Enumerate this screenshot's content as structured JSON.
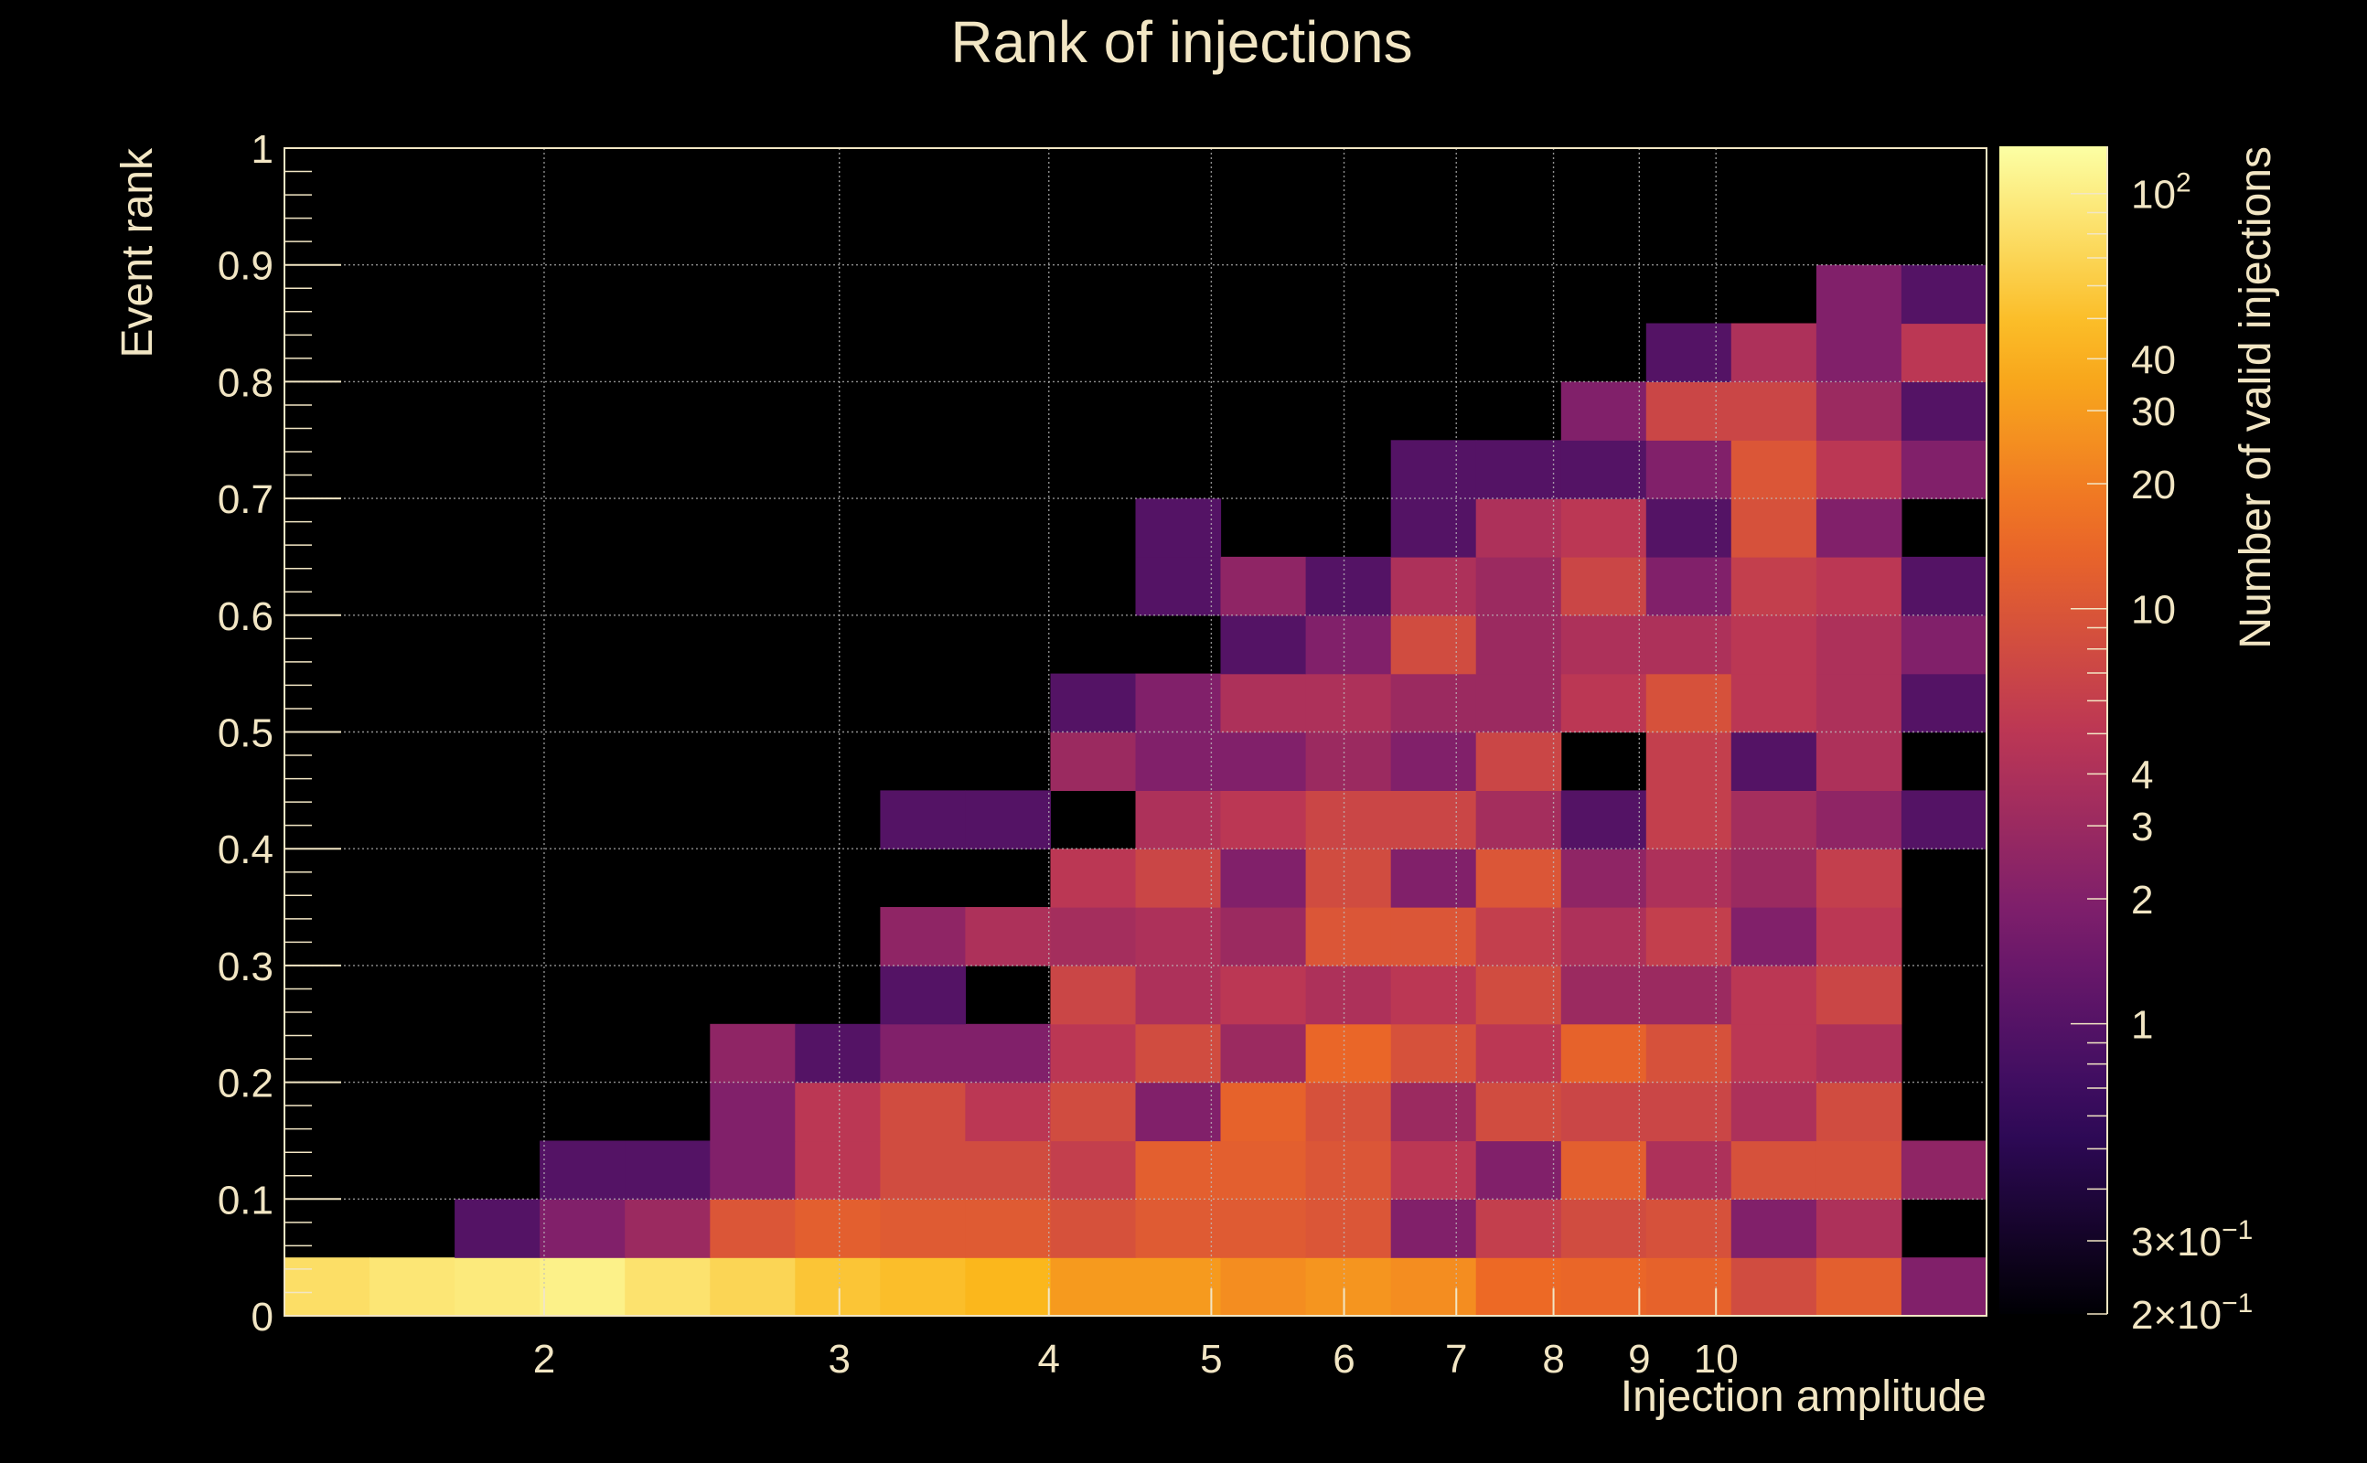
{
  "chart_data": {
    "type": "heatmap",
    "title": "Rank of injections",
    "xlabel": "Injection amplitude",
    "ylabel": "Event rank",
    "zlabel": "Number of valid injections",
    "x_scale": "log",
    "xlim": [
      1.4,
      14.5
    ],
    "ylim": [
      0,
      1
    ],
    "zlim": [
      0.2,
      130
    ],
    "z_scale": "log",
    "grid": true,
    "x_ticks": [
      "2",
      "3",
      "4",
      "5",
      "6",
      "7",
      "8",
      "9",
      "10"
    ],
    "y_ticks": [
      "0",
      "0.1",
      "0.2",
      "0.3",
      "0.4",
      "0.5",
      "0.6",
      "0.7",
      "0.8",
      "0.9",
      "1"
    ],
    "z_ticks": [
      {
        "value": 100,
        "label": "10",
        "exp": "2"
      },
      {
        "value": 40,
        "label": "40",
        "exp": ""
      },
      {
        "value": 30,
        "label": "30",
        "exp": ""
      },
      {
        "value": 20,
        "label": "20",
        "exp": ""
      },
      {
        "value": 10,
        "label": "10",
        "exp": ""
      },
      {
        "value": 4,
        "label": "4",
        "exp": ""
      },
      {
        "value": 3,
        "label": "3",
        "exp": ""
      },
      {
        "value": 2,
        "label": "2",
        "exp": ""
      },
      {
        "value": 1,
        "label": "1",
        "exp": ""
      },
      {
        "value": 0.3,
        "label": "3×10",
        "exp": "−1"
      },
      {
        "value": 0.2,
        "label": "2×10",
        "exp": "−1"
      }
    ],
    "y_bins": [
      0,
      0.05,
      0.1,
      0.15,
      0.2,
      0.25,
      0.3,
      0.35,
      0.4,
      0.45,
      0.5,
      0.55,
      0.6,
      0.65,
      0.7,
      0.75,
      0.8,
      0.85,
      0.9
    ],
    "rows": [
      [
        80,
        90,
        95,
        105,
        85,
        70,
        55,
        50,
        45,
        30,
        30,
        25,
        28,
        25,
        15,
        14,
        13,
        8,
        12,
        2
      ],
      [
        0,
        0,
        1,
        2,
        3,
        10,
        12,
        11,
        11,
        9,
        11,
        11,
        10,
        2,
        6,
        8,
        9,
        2,
        4,
        0
      ],
      [
        0,
        0,
        0,
        1,
        1,
        2,
        5,
        8,
        8,
        6,
        12,
        12,
        10,
        5,
        2,
        12,
        4,
        9,
        9,
        2.5
      ],
      [
        0,
        0,
        0,
        0,
        0,
        2,
        5,
        8,
        5,
        8,
        2,
        13,
        9,
        3,
        8,
        7,
        7,
        4,
        8,
        0
      ],
      [
        0,
        0,
        0,
        0,
        0,
        2.5,
        1,
        2,
        2,
        5,
        8,
        3,
        14,
        9,
        5,
        13,
        9,
        5,
        4,
        0
      ],
      [
        0,
        0,
        0,
        0,
        0,
        0,
        0,
        1,
        0,
        7,
        4,
        5,
        4,
        5,
        8,
        3,
        3,
        5,
        7,
        0
      ],
      [
        0,
        0,
        0,
        0,
        0,
        0,
        0,
        2.5,
        4,
        3.5,
        4,
        3,
        10,
        10,
        6,
        4,
        6,
        2,
        5,
        0
      ],
      [
        0,
        0,
        0,
        0,
        0,
        0,
        0,
        0,
        0,
        5,
        7,
        2,
        8,
        2,
        10,
        2.5,
        4,
        3,
        6,
        0
      ],
      [
        0,
        0,
        0,
        0,
        0,
        0,
        0,
        1,
        1,
        0,
        4,
        5,
        7,
        7,
        3.5,
        1,
        6,
        3.5,
        2.5,
        1
      ],
      [
        0,
        0,
        0,
        0,
        0,
        0,
        0,
        0,
        0,
        3,
        2,
        2,
        3,
        2,
        7,
        0,
        6,
        1,
        4,
        0
      ],
      [
        0,
        0,
        0,
        0,
        0,
        0,
        0,
        0,
        0,
        1,
        2,
        4,
        4,
        3,
        3,
        5,
        9,
        5,
        4,
        1
      ],
      [
        0,
        0,
        0,
        0,
        0,
        0,
        0,
        0,
        0,
        0,
        0,
        1,
        2,
        8,
        3,
        4,
        4,
        5,
        4,
        2
      ],
      [
        0,
        0,
        0,
        0,
        0,
        0,
        0,
        0,
        0,
        0,
        1,
        2.5,
        1,
        4,
        3,
        7,
        2,
        6,
        5,
        1
      ],
      [
        0,
        0,
        0,
        0,
        0,
        0,
        0,
        0,
        0,
        0,
        1,
        0,
        0,
        1,
        4,
        5,
        1,
        9,
        2,
        0
      ],
      [
        0,
        0,
        0,
        0,
        0,
        0,
        0,
        0,
        0,
        0,
        0,
        0,
        0,
        1,
        1,
        1,
        2,
        10,
        5,
        2
      ],
      [
        0,
        0,
        0,
        0,
        0,
        0,
        0,
        0,
        0,
        0,
        0,
        0,
        0,
        0,
        0,
        2,
        7,
        7,
        3,
        1
      ],
      [
        0,
        0,
        0,
        0,
        0,
        0,
        0,
        0,
        0,
        0,
        0,
        0,
        0,
        0,
        0,
        0,
        1,
        4,
        2,
        5
      ],
      [
        0,
        0,
        0,
        0,
        0,
        0,
        0,
        0,
        0,
        0,
        0,
        0,
        0,
        0,
        0,
        0,
        0,
        0,
        2,
        1
      ]
    ],
    "colors": {
      "background": "#000000",
      "text": "#f2e6c4",
      "grid": "#bfbfbf",
      "palette": [
        "#000004",
        "#320a5e",
        "#781c6d",
        "#bc3754",
        "#ed6925",
        "#fbb61a",
        "#fcffa4"
      ]
    }
  }
}
